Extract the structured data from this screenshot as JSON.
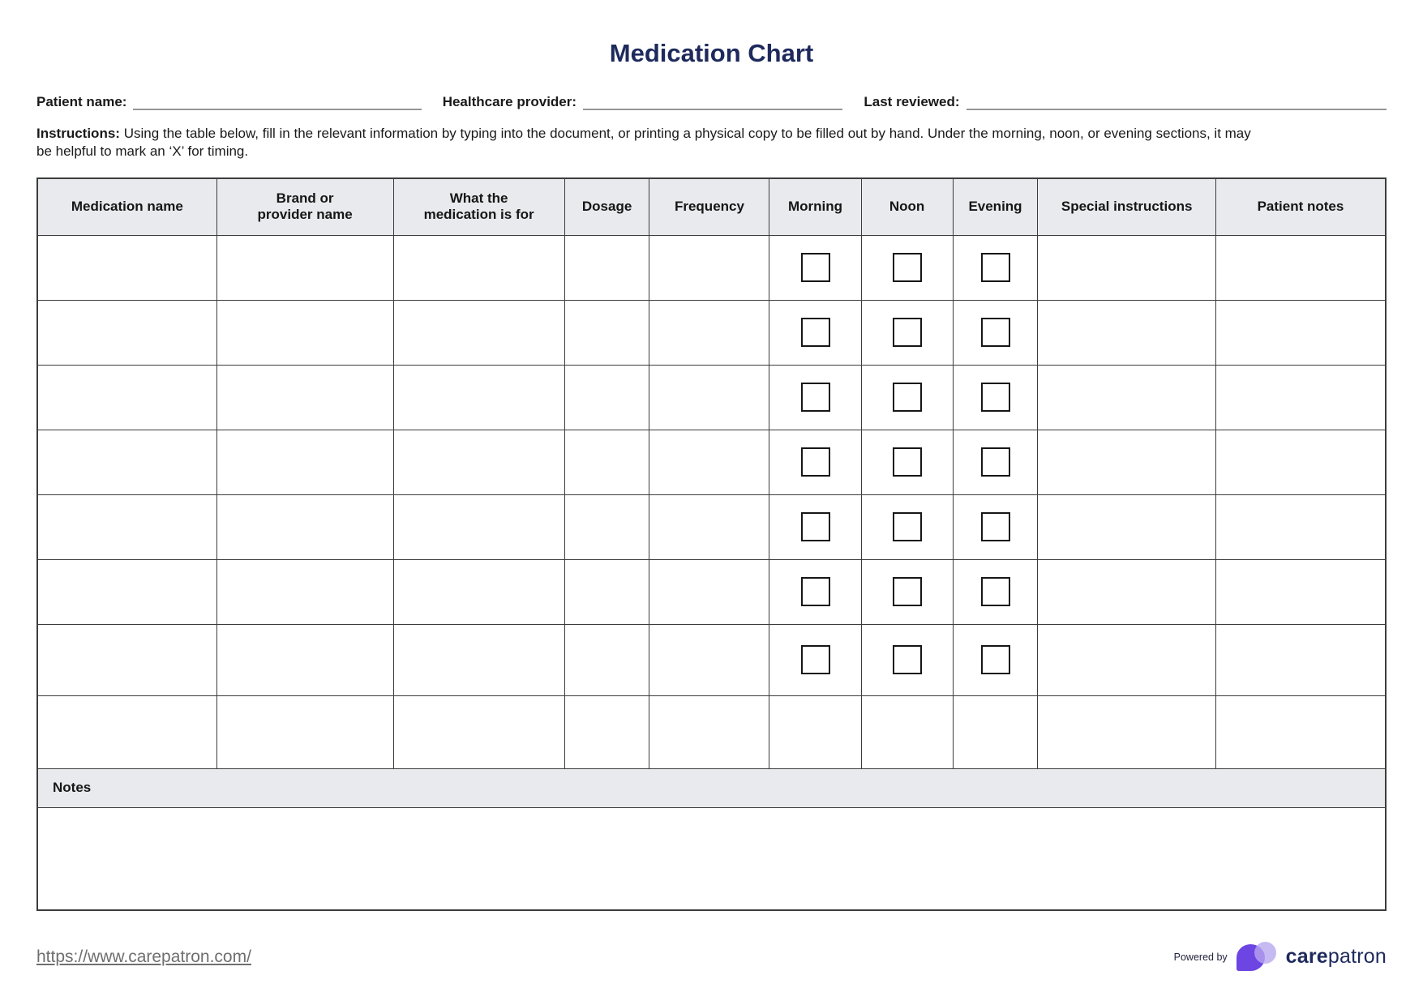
{
  "title": "Medication Chart",
  "fields": [
    {
      "label": "Patient name:",
      "value": ""
    },
    {
      "label": "Healthcare provider:",
      "value": ""
    },
    {
      "label": "Last reviewed:",
      "value": ""
    }
  ],
  "instructions": {
    "label": "Instructions:",
    "text": "Using the table below, fill in the relevant information by typing into the document, or printing a physical copy to be filled out by hand. Under the morning, noon, or evening sections, it may\nbe helpful to mark an ‘X’ for timing."
  },
  "table": {
    "columns": [
      "Medication name",
      "Brand or\nprovider name",
      "What the\nmedication is for",
      "Dosage",
      "Frequency",
      "Morning",
      "Noon",
      "Evening",
      "Special instructions",
      "Patient notes"
    ],
    "checkbox_columns": [
      "Morning",
      "Noon",
      "Evening"
    ],
    "body_row_count": 8,
    "checkbox_row_count": 7,
    "checkboxes_checked": [],
    "cell_values": [],
    "notes_label": "Notes",
    "notes_value": ""
  },
  "footer": {
    "website_link": "https://www.carepatron.com/",
    "powered_by_label": "Powered by",
    "brand_name_bold": "care",
    "brand_name_light": "patron"
  },
  "colors": {
    "title_navy": "#1e2a5c",
    "header_gray": "#e8eaed",
    "table_border": "#3c3c3c",
    "underline_gray": "#969696",
    "link_gray": "#6f6f6f",
    "logo_purple": "#6c45e2",
    "logo_lavender": "#b7a6f0"
  }
}
